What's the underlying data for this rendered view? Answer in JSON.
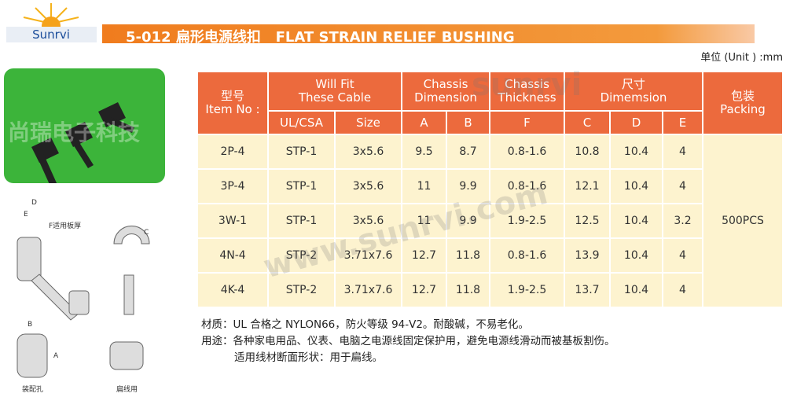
{
  "header": {
    "logo": "Sunrvi",
    "title": "5-012 扁形电源线扣   FLAT STRAIN RELIEF BUSHING",
    "unit": "单位 (Unit ) :mm"
  },
  "watermarks": [
    "尚瑞电子科技",
    "sunrvi",
    "www.sunrvi.com"
  ],
  "drawing": {
    "labels": [
      "D",
      "E",
      "F适用板厚",
      "C",
      "B",
      "A",
      "装配孔",
      "扁线用"
    ]
  },
  "table": {
    "head": {
      "item": [
        "型号",
        "Item No :"
      ],
      "cable": [
        "Will Fit",
        "These Cable"
      ],
      "chassis_dim": [
        "Chassis",
        "Dimension"
      ],
      "chassis_thk": [
        "Chassis",
        "Thickness"
      ],
      "dim": [
        "尺寸",
        "Dimemsion"
      ],
      "packing": [
        "包装",
        "Packing"
      ],
      "sub": [
        "UL/CSA",
        "Size",
        "A",
        "B",
        "F",
        "C",
        "D",
        "E"
      ]
    },
    "rows": [
      [
        "2P-4",
        "STP-1",
        "3x5.6",
        "9.5",
        "8.7",
        "0.8-1.6",
        "10.8",
        "10.4",
        "4"
      ],
      [
        "3P-4",
        "STP-1",
        "3x5.6",
        "11",
        "9.9",
        "0.8-1.6",
        "12.1",
        "10.4",
        "4"
      ],
      [
        "3W-1",
        "STP-1",
        "3x5.6",
        "11",
        "9.9",
        "1.9-2.5",
        "12.5",
        "10.4",
        "3.2"
      ],
      [
        "4N-4",
        "STP-2",
        "3.71x7.6",
        "12.7",
        "11.8",
        "0.8-1.6",
        "13.9",
        "10.4",
        "4"
      ],
      [
        "4K-4",
        "STP-2",
        "3.71x7.6",
        "12.7",
        "11.8",
        "1.9-2.5",
        "13.7",
        "10.4",
        "4"
      ]
    ],
    "packing": "500PCS"
  },
  "notes": [
    "材质：UL 合格之 NYLON66，防火等级 94-V2。耐酸碱，不易老化。",
    "用途：各种家电用品、仪表、电脑之电源线固定保护用，避免电源线滑动而被基板割伤。",
    "适用线材断面形状：用于扁线。"
  ]
}
